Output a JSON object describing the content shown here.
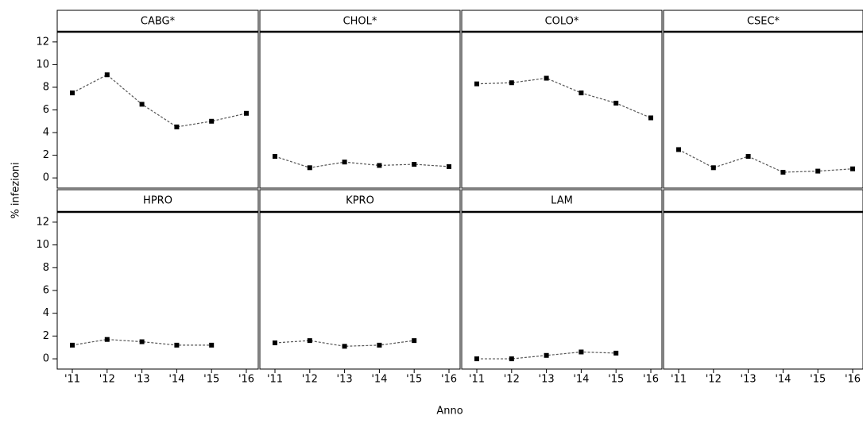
{
  "chart_data": {
    "type": "line",
    "xlabel": "Anno",
    "ylabel": "% infezioni",
    "categories": [
      "'11",
      "'12",
      "'13",
      "'14",
      "'15",
      "'16"
    ],
    "ylim": [
      -0.9,
      12.9
    ],
    "yticks": [
      0,
      2,
      4,
      6,
      8,
      10,
      12
    ],
    "color": "#000000",
    "line_color": "#555555",
    "panels": [
      {
        "title": "CABG*",
        "values": [
          7.5,
          9.1,
          6.5,
          4.5,
          5.0,
          5.7
        ]
      },
      {
        "title": "CHOL*",
        "values": [
          1.9,
          0.9,
          1.4,
          1.1,
          1.2,
          1.0
        ]
      },
      {
        "title": "COLO*",
        "values": [
          8.3,
          8.4,
          8.8,
          7.5,
          6.6,
          5.3
        ]
      },
      {
        "title": "CSEC*",
        "values": [
          2.5,
          0.9,
          1.9,
          0.5,
          0.6,
          0.8
        ]
      },
      {
        "title": "HPRO",
        "values": [
          1.2,
          1.7,
          1.5,
          1.2,
          1.2,
          null
        ]
      },
      {
        "title": "KPRO",
        "values": [
          1.4,
          1.6,
          1.1,
          1.2,
          1.6,
          null
        ]
      },
      {
        "title": "LAM",
        "values": [
          0.0,
          0.0,
          0.3,
          0.6,
          0.5,
          null
        ]
      }
    ]
  }
}
